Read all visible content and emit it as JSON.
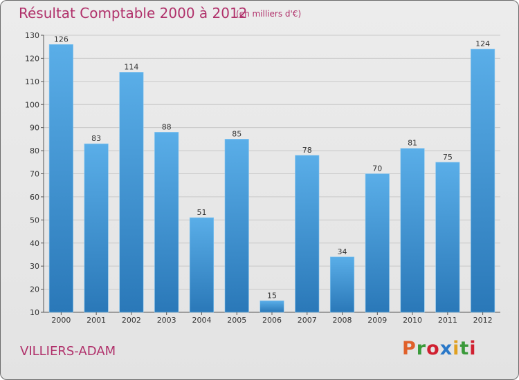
{
  "header": {
    "title": "Résultat Comptable 2000 à 2012",
    "subtitle": "(en milliers d'€)"
  },
  "footer": {
    "location": "VILLIERS-ADAM",
    "brand": "Proxiti",
    "brand_colors": [
      "#e0602a",
      "#3a9a3a",
      "#d02030",
      "#2a78c8",
      "#e0a020",
      "#3a9a3a",
      "#d02030"
    ]
  },
  "colors": {
    "title": "#b0306a",
    "bar_top": "#5aaee8",
    "bar_bottom": "#2a78b8"
  },
  "chart_data": {
    "type": "bar",
    "title": "Résultat Comptable 2000 à 2012",
    "xlabel": "",
    "ylabel": "",
    "categories": [
      "2000",
      "2001",
      "2002",
      "2003",
      "2004",
      "2005",
      "2006",
      "2007",
      "2008",
      "2009",
      "2010",
      "2011",
      "2012"
    ],
    "values": [
      126,
      83,
      114,
      88,
      51,
      85,
      15,
      78,
      34,
      70,
      81,
      75,
      124
    ],
    "ylim": [
      10,
      130
    ],
    "yticks": [
      10,
      20,
      30,
      40,
      50,
      60,
      70,
      80,
      90,
      100,
      110,
      120,
      130
    ],
    "grid": true
  }
}
